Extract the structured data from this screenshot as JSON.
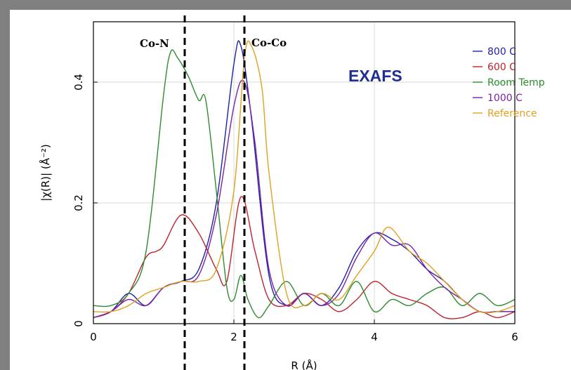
{
  "chart_data": {
    "type": "line",
    "title": "",
    "xlabel": "R (Å)",
    "ylabel": "|χ(R)| (Å⁻²)",
    "xlim": [
      0,
      6
    ],
    "ylim": [
      0,
      0.5
    ],
    "grid": true,
    "legend_placement": "top-right",
    "x_ticks": [
      0,
      2,
      4,
      6
    ],
    "y_ticks": [
      0,
      0.2,
      0.4
    ],
    "x_tick_labels": [
      "0",
      "2",
      "4",
      "6"
    ],
    "y_tick_labels": [
      "0",
      "0.2",
      "0.4"
    ],
    "series": [
      {
        "name": "800 C",
        "color": "#1f1fa8",
        "x": [
          0,
          0.25,
          0.5,
          0.75,
          1.0,
          1.25,
          1.5,
          1.75,
          2.0,
          2.1,
          2.25,
          2.5,
          2.75,
          3.0,
          3.25,
          3.5,
          3.75,
          4.0,
          4.25,
          4.5,
          4.75,
          5.0,
          5.25,
          5.5,
          5.75,
          6.0
        ],
        "y": [
          0.01,
          0.02,
          0.05,
          0.03,
          0.06,
          0.07,
          0.09,
          0.2,
          0.43,
          0.46,
          0.34,
          0.08,
          0.03,
          0.05,
          0.03,
          0.06,
          0.12,
          0.15,
          0.14,
          0.12,
          0.09,
          0.07,
          0.04,
          0.02,
          0.02,
          0.02
        ]
      },
      {
        "name": "600 C",
        "color": "#c0222d",
        "x": [
          0,
          0.25,
          0.5,
          0.75,
          0.9,
          1.0,
          1.25,
          1.5,
          1.75,
          1.9,
          2.1,
          2.3,
          2.5,
          2.75,
          3.0,
          3.25,
          3.5,
          3.75,
          4.0,
          4.25,
          4.5,
          4.75,
          5.0,
          5.25,
          5.5,
          5.75,
          6.0
        ],
        "y": [
          0.01,
          0.02,
          0.05,
          0.11,
          0.12,
          0.13,
          0.18,
          0.15,
          0.09,
          0.07,
          0.21,
          0.12,
          0.04,
          0.03,
          0.05,
          0.04,
          0.02,
          0.04,
          0.07,
          0.05,
          0.04,
          0.03,
          0.01,
          0.01,
          0.02,
          0.01,
          0.02
        ]
      },
      {
        "name": "Room Temp",
        "color": "#2e8b2e",
        "x": [
          0,
          0.25,
          0.5,
          0.75,
          1.0,
          1.1,
          1.2,
          1.35,
          1.5,
          1.6,
          1.75,
          1.9,
          2.0,
          2.1,
          2.2,
          2.35,
          2.5,
          2.75,
          3.0,
          3.25,
          3.5,
          3.75,
          4.0,
          4.25,
          4.5,
          4.75,
          5.0,
          5.25,
          5.5,
          5.75,
          6.0
        ],
        "y": [
          0.03,
          0.03,
          0.05,
          0.12,
          0.38,
          0.45,
          0.44,
          0.41,
          0.37,
          0.37,
          0.22,
          0.06,
          0.04,
          0.08,
          0.04,
          0.01,
          0.03,
          0.07,
          0.03,
          0.05,
          0.03,
          0.07,
          0.02,
          0.04,
          0.03,
          0.05,
          0.06,
          0.03,
          0.05,
          0.03,
          0.04
        ]
      },
      {
        "name": "1000 C",
        "color": "#7a22a8",
        "x": [
          0,
          0.25,
          0.5,
          0.75,
          1.0,
          1.25,
          1.5,
          1.75,
          2.0,
          2.15,
          2.3,
          2.5,
          2.75,
          3.0,
          3.25,
          3.5,
          3.75,
          4.0,
          4.25,
          4.5,
          4.75,
          5.0,
          5.25,
          5.5,
          5.75,
          6.0
        ],
        "y": [
          0.01,
          0.02,
          0.04,
          0.03,
          0.06,
          0.07,
          0.08,
          0.18,
          0.36,
          0.4,
          0.3,
          0.09,
          0.03,
          0.05,
          0.03,
          0.05,
          0.11,
          0.15,
          0.13,
          0.13,
          0.09,
          0.06,
          0.04,
          0.02,
          0.02,
          0.02
        ]
      },
      {
        "name": "Reference",
        "color": "#e0a020",
        "x": [
          0,
          0.25,
          0.5,
          0.75,
          1.0,
          1.25,
          1.5,
          1.75,
          2.0,
          2.15,
          2.25,
          2.4,
          2.5,
          2.75,
          3.0,
          3.25,
          3.5,
          3.75,
          4.0,
          4.2,
          4.5,
          4.75,
          5.0,
          5.25,
          5.5,
          5.75,
          6.0
        ],
        "y": [
          0.02,
          0.02,
          0.03,
          0.05,
          0.06,
          0.07,
          0.07,
          0.09,
          0.22,
          0.44,
          0.46,
          0.39,
          0.25,
          0.05,
          0.03,
          0.05,
          0.04,
          0.08,
          0.12,
          0.16,
          0.12,
          0.1,
          0.07,
          0.04,
          0.02,
          0.02,
          0.03
        ]
      }
    ],
    "annotations": [
      {
        "text": "Co-N",
        "x": 1.3
      },
      {
        "text": "Co-Co",
        "x": 2.15
      },
      {
        "text": "EXAFS"
      }
    ]
  }
}
